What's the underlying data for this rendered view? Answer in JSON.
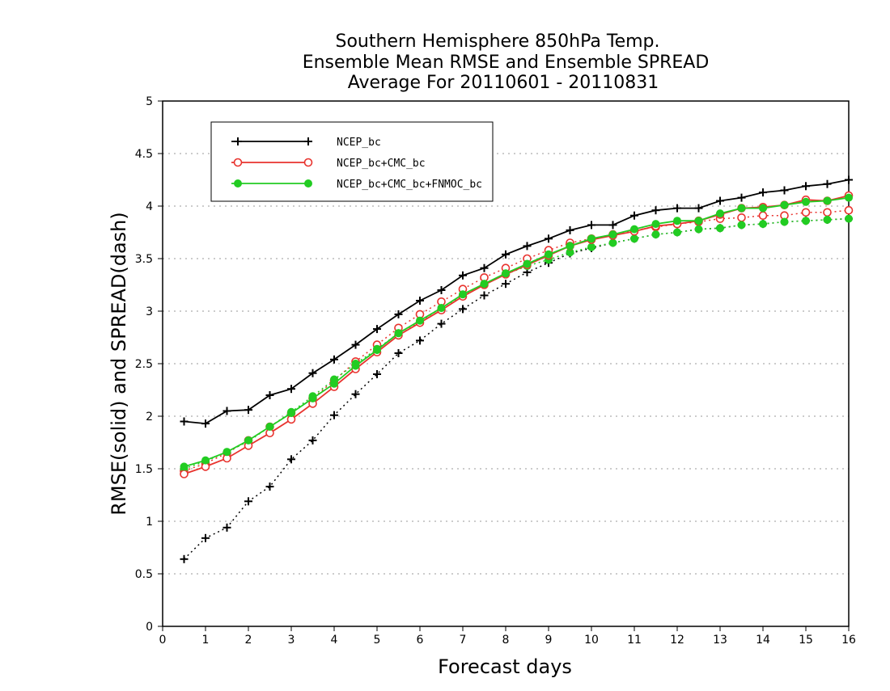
{
  "chart_data": {
    "type": "line",
    "title_lines": [
      "Southern Hemisphere 850hPa Temp.",
      "Ensemble Mean RMSE and Ensemble SPREAD",
      "Average For 20110601 - 20110831"
    ],
    "xlabel": "Forecast days",
    "ylabel": "RMSE(solid) and SPREAD(dash)",
    "xlim": [
      0,
      16
    ],
    "ylim": [
      0,
      5
    ],
    "xticks": [
      0,
      1,
      2,
      3,
      4,
      5,
      6,
      7,
      8,
      9,
      10,
      11,
      12,
      13,
      14,
      15,
      16
    ],
    "yticks": [
      0,
      0.5,
      1,
      1.5,
      2,
      2.5,
      3,
      3.5,
      4,
      4.5,
      5
    ],
    "grid": "horizontal dotted",
    "legend_position": "top-left",
    "x": [
      0.5,
      1,
      1.5,
      2,
      2.5,
      3,
      3.5,
      4,
      4.5,
      5,
      5.5,
      6,
      6.5,
      7,
      7.5,
      8,
      8.5,
      9,
      9.5,
      10,
      10.5,
      11,
      11.5,
      12,
      12.5,
      13,
      13.5,
      14,
      14.5,
      15,
      15.5,
      16
    ],
    "series": [
      {
        "name": "NCEP_bc",
        "color": "#000000",
        "marker": "plus",
        "rmse": [
          1.95,
          1.93,
          2.05,
          2.06,
          2.2,
          2.26,
          2.41,
          2.54,
          2.68,
          2.83,
          2.97,
          3.1,
          3.2,
          3.34,
          3.41,
          3.54,
          3.62,
          3.69,
          3.77,
          3.82,
          3.82,
          3.91,
          3.96,
          3.98,
          3.98,
          4.05,
          4.08,
          4.13,
          4.15,
          4.19,
          4.21,
          4.25
        ],
        "spread": [
          0.64,
          0.84,
          0.94,
          1.19,
          1.33,
          1.59,
          1.77,
          2.01,
          2.21,
          2.4,
          2.6,
          2.72,
          2.88,
          3.02,
          3.15,
          3.26,
          3.37,
          3.46,
          3.55,
          3.6,
          3.65,
          3.69,
          3.73,
          3.75,
          3.78,
          3.79,
          3.82,
          3.83,
          3.85,
          3.86,
          3.87,
          3.88
        ]
      },
      {
        "name": "NCEP_bc+CMC_bc",
        "color": "#e8332e",
        "marker": "open-circle",
        "rmse": [
          1.45,
          1.52,
          1.6,
          1.72,
          1.84,
          1.97,
          2.12,
          2.28,
          2.45,
          2.61,
          2.77,
          2.89,
          3.01,
          3.14,
          3.25,
          3.35,
          3.44,
          3.53,
          3.62,
          3.68,
          3.72,
          3.76,
          3.81,
          3.83,
          3.86,
          3.92,
          3.98,
          3.99,
          4.01,
          4.06,
          4.05,
          4.1
        ],
        "spread": [
          1.48,
          1.55,
          1.65,
          1.77,
          1.9,
          2.03,
          2.17,
          2.34,
          2.52,
          2.68,
          2.84,
          2.97,
          3.09,
          3.21,
          3.32,
          3.41,
          3.5,
          3.58,
          3.65,
          3.69,
          3.73,
          3.77,
          3.8,
          3.83,
          3.85,
          3.88,
          3.89,
          3.91,
          3.91,
          3.94,
          3.94,
          3.96
        ]
      },
      {
        "name": "NCEP_bc+CMC_bc+FNMOC_bc",
        "color": "#22cc22",
        "marker": "filled-circle",
        "rmse": [
          1.52,
          1.58,
          1.66,
          1.77,
          1.9,
          2.03,
          2.17,
          2.31,
          2.48,
          2.63,
          2.79,
          2.91,
          3.03,
          3.16,
          3.26,
          3.36,
          3.45,
          3.54,
          3.62,
          3.69,
          3.73,
          3.78,
          3.83,
          3.86,
          3.86,
          3.93,
          3.98,
          3.98,
          4.01,
          4.04,
          4.05,
          4.08
        ],
        "spread": [
          1.5,
          1.57,
          1.66,
          1.76,
          1.9,
          2.04,
          2.19,
          2.35,
          2.5,
          2.64,
          2.79,
          2.9,
          3.03,
          3.15,
          3.26,
          3.35,
          3.43,
          3.49,
          3.56,
          3.61,
          3.65,
          3.69,
          3.73,
          3.75,
          3.78,
          3.79,
          3.82,
          3.83,
          3.85,
          3.86,
          3.87,
          3.88
        ]
      }
    ]
  }
}
